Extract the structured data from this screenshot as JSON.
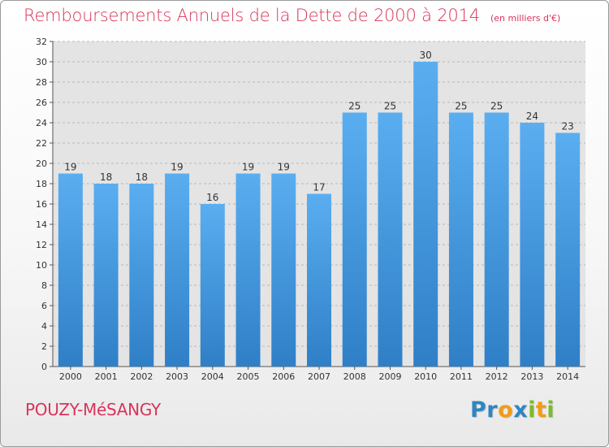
{
  "header": {
    "title": "Remboursements Annuels de la Dette de 2000 à 2014",
    "unit": "(en milliers d'€)"
  },
  "footer": {
    "place": "POUZY-MéSANGY",
    "logo_text": "Proxiti",
    "logo_letters": [
      {
        "ch": "P",
        "color": "#2e86c1"
      },
      {
        "ch": "r",
        "color": "#2e86c1"
      },
      {
        "ch": "o",
        "color": "#f39c12"
      },
      {
        "ch": "x",
        "color": "#2e86c1"
      },
      {
        "ch": "i",
        "color": "#7dbb2a"
      },
      {
        "ch": "t",
        "color": "#f39c12"
      },
      {
        "ch": "i",
        "color": "#7dbb2a"
      }
    ]
  },
  "chart_data": {
    "type": "bar",
    "categories": [
      "2000",
      "2001",
      "2002",
      "2003",
      "2004",
      "2005",
      "2006",
      "2007",
      "2008",
      "2009",
      "2010",
      "2011",
      "2012",
      "2013",
      "2014"
    ],
    "values": [
      19,
      18,
      18,
      19,
      16,
      19,
      19,
      17,
      25,
      25,
      30,
      25,
      25,
      24,
      23
    ],
    "ylim": [
      0,
      32
    ],
    "yticks": [
      0,
      2,
      4,
      6,
      8,
      10,
      12,
      14,
      16,
      18,
      20,
      22,
      24,
      26,
      28,
      30,
      32
    ],
    "grid": true,
    "bar_color": "#3e9ae0",
    "title_color": "#d9345a"
  }
}
